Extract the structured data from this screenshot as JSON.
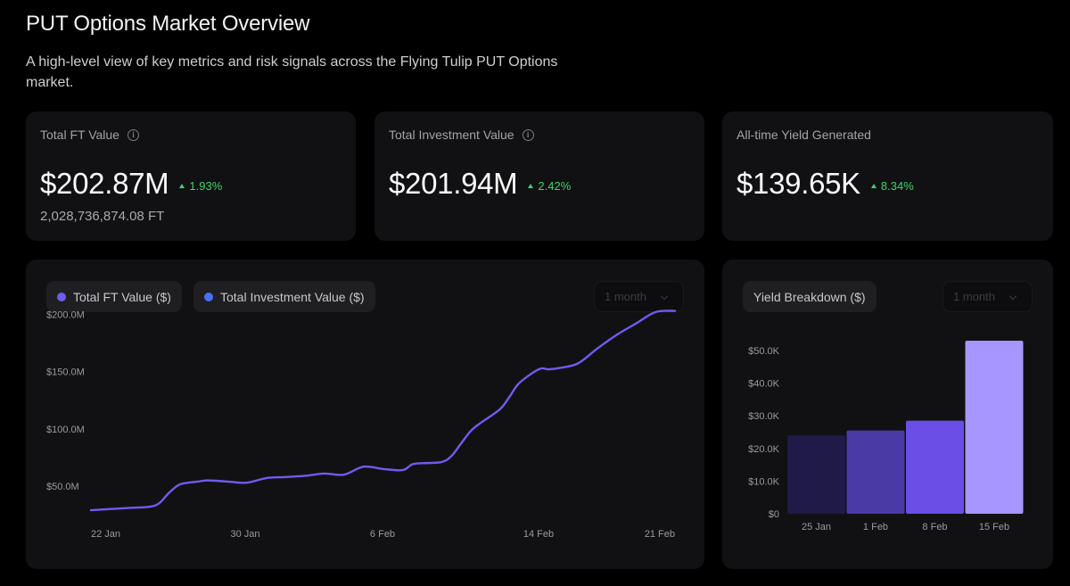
{
  "page": {
    "title": "PUT Options Market Overview",
    "subtitle": "A high-level view of key metrics and risk signals across the Flying Tulip PUT Options market."
  },
  "stats": [
    {
      "label": "Total FT Value",
      "has_info": true,
      "value": "$202.87M",
      "change": "1.93%",
      "sub": "2,028,736,874.08 FT"
    },
    {
      "label": "Total Investment Value",
      "has_info": true,
      "value": "$201.94M",
      "change": "2.42%",
      "sub": ""
    },
    {
      "label": "All-time Yield Generated",
      "has_info": false,
      "value": "$139.65K",
      "change": "8.34%",
      "sub": ""
    }
  ],
  "colors": {
    "positive": "#3fd46b",
    "series_ft": "#6e5cf0",
    "series_investment": "#4c6ef5",
    "bars": [
      "#1f1a48",
      "#4a3aa6",
      "#6a4ee6",
      "#a896ff"
    ]
  },
  "icons": {
    "info": "info-circle-icon",
    "change": "triangle-up-icon",
    "select": "chevron-down-icon"
  },
  "line_panel": {
    "legend": [
      {
        "label": "Total FT Value ($)",
        "color": "#6e5cf0"
      },
      {
        "label": "Total Investment Value ($)",
        "color": "#4c6ef5"
      }
    ],
    "range": "1 month"
  },
  "bar_panel": {
    "legend": "Yield Breakdown ($)",
    "range": "1 month"
  },
  "chart_data": [
    {
      "type": "line",
      "x_ticks": [
        "22 Jan",
        "30 Jan",
        "6 Feb",
        "14 Feb",
        "21 Feb"
      ],
      "y_ticks": [
        "$50.0M",
        "$100.0M",
        "$150.0M",
        "$200.0M"
      ],
      "y_tick_values": [
        50,
        100,
        150,
        200
      ],
      "ylim": [
        22,
        212
      ],
      "xlim": [
        0,
        30
      ],
      "grid": false,
      "series": [
        {
          "name": "Total FT Value ($)",
          "x": [
            0,
            1,
            2,
            3,
            3.5,
            4,
            4.5,
            5,
            5.5,
            6,
            7,
            8,
            9,
            10,
            11,
            12,
            13,
            14,
            15,
            16,
            16.5,
            17,
            18,
            18.5,
            19,
            19.5,
            20,
            21,
            21.5,
            22,
            23,
            23.5,
            24,
            25,
            26,
            27,
            28,
            29,
            30
          ],
          "y": [
            29,
            30,
            31,
            32,
            35,
            44,
            51,
            53,
            54,
            55,
            54,
            53,
            57,
            58,
            59,
            61,
            60,
            67,
            65,
            64,
            69,
            70,
            71,
            76,
            87,
            98,
            105,
            117,
            128,
            140,
            152,
            152,
            153,
            157,
            170,
            182,
            192,
            202,
            203
          ]
        }
      ]
    },
    {
      "type": "bar",
      "categories": [
        "25 Jan",
        "1 Feb",
        "8 Feb",
        "15 Feb"
      ],
      "values": [
        24000,
        25500,
        28500,
        53000
      ],
      "y_ticks": [
        "$0",
        "$10.0K",
        "$20.0K",
        "$30.0K",
        "$40.0K",
        "$50.0K"
      ],
      "y_tick_values": [
        0,
        10000,
        20000,
        30000,
        40000,
        50000
      ],
      "ylim": [
        0,
        53000
      ],
      "grid": false,
      "series": [
        {
          "name": "Yield Breakdown ($)",
          "values": [
            24000,
            25500,
            28500,
            53000
          ]
        }
      ]
    }
  ]
}
